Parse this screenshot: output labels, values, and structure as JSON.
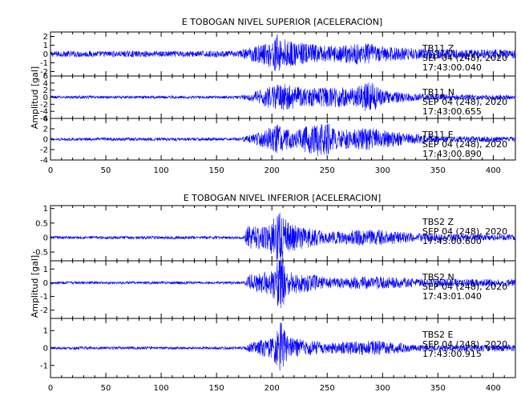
{
  "chart_data": [
    {
      "type": "line",
      "title": "E TOBOGAN NIVEL SUPERIOR [ACELERACION]",
      "ylabel": "Amplitud [gal]",
      "xlim": [
        0,
        420
      ],
      "xticks": [
        0,
        50,
        100,
        150,
        200,
        250,
        300,
        350,
        400
      ],
      "line_color": "#0000ff",
      "grid": false,
      "channels": [
        {
          "station": "TB11",
          "component": "Z",
          "date": "SEP 04 (248), 2020",
          "time": "17:43:00.040",
          "ylim": [
            -2.5,
            2.5
          ],
          "yticks": [
            -2,
            -1,
            0,
            1,
            2
          ],
          "noise_amplitude": 0.35,
          "envelope": [
            [
              0,
              0.35
            ],
            [
              170,
              0.35
            ],
            [
              180,
              0.8
            ],
            [
              195,
              1.3
            ],
            [
              205,
              2.3
            ],
            [
              215,
              1.5
            ],
            [
              250,
              0.9
            ],
            [
              285,
              1.3
            ],
            [
              300,
              0.9
            ],
            [
              340,
              0.6
            ],
            [
              420,
              0.5
            ]
          ]
        },
        {
          "station": "TB11",
          "component": "N",
          "date": "SEP 04 (248), 2020",
          "time": "17:43:00.655",
          "ylim": [
            -6,
            6
          ],
          "yticks": [
            -6,
            -4,
            -2,
            0,
            2,
            4,
            6
          ],
          "noise_amplitude": 0.4,
          "envelope": [
            [
              0,
              0.4
            ],
            [
              170,
              0.4
            ],
            [
              180,
              1.0
            ],
            [
              200,
              3.5
            ],
            [
              215,
              3.8
            ],
            [
              230,
              2.5
            ],
            [
              260,
              3.0
            ],
            [
              270,
              2.6
            ],
            [
              290,
              4.5
            ],
            [
              300,
              2.0
            ],
            [
              330,
              1.0
            ],
            [
              420,
              0.6
            ]
          ]
        },
        {
          "station": "TB11",
          "component": "E",
          "date": "SEP 04 (248), 2020",
          "time": "17:43:00.890",
          "ylim": [
            -4,
            4
          ],
          "yticks": [
            -4,
            -2,
            0,
            2,
            4
          ],
          "noise_amplitude": 0.3,
          "envelope": [
            [
              0,
              0.3
            ],
            [
              170,
              0.3
            ],
            [
              185,
              1.0
            ],
            [
              205,
              2.8
            ],
            [
              220,
              1.6
            ],
            [
              245,
              3.8
            ],
            [
              260,
              1.8
            ],
            [
              290,
              2.2
            ],
            [
              320,
              1.2
            ],
            [
              350,
              0.6
            ],
            [
              420,
              0.5
            ]
          ]
        }
      ]
    },
    {
      "type": "line",
      "title": "E TOBOGAN NIVEL INFERIOR [ACELERACION]",
      "ylabel": "Amplitud [gal]",
      "xlim": [
        0,
        420
      ],
      "xticks": [
        0,
        50,
        100,
        150,
        200,
        250,
        300,
        350,
        400
      ],
      "line_color": "#0000ff",
      "grid": false,
      "channels": [
        {
          "station": "TBS2",
          "component": "Z",
          "date": "SEP 04 (248), 2020",
          "time": "17:43:00.600",
          "ylim": [
            -0.8,
            1.1
          ],
          "yticks": [
            -0.5,
            0.0,
            0.5,
            1.0
          ],
          "noise_amplitude": 0.05,
          "envelope": [
            [
              0,
              0.05
            ],
            [
              175,
              0.05
            ],
            [
              178,
              0.4
            ],
            [
              195,
              0.4
            ],
            [
              208,
              1.0
            ],
            [
              215,
              0.5
            ],
            [
              250,
              0.2
            ],
            [
              290,
              0.3
            ],
            [
              330,
              0.15
            ],
            [
              420,
              0.1
            ]
          ]
        },
        {
          "station": "TBS2",
          "component": "N",
          "date": "SEP 04 (248), 2020",
          "time": "17:43:01.040",
          "ylim": [
            -2.6,
            1.6
          ],
          "yticks": [
            -2,
            -1,
            0,
            1
          ],
          "noise_amplitude": 0.1,
          "envelope": [
            [
              0,
              0.1
            ],
            [
              175,
              0.1
            ],
            [
              180,
              0.6
            ],
            [
              200,
              0.9
            ],
            [
              208,
              2.3
            ],
            [
              215,
              0.9
            ],
            [
              250,
              0.4
            ],
            [
              290,
              0.5
            ],
            [
              330,
              0.3
            ],
            [
              420,
              0.25
            ]
          ]
        },
        {
          "station": "TBS2",
          "component": "E",
          "date": "SEP 04 (248), 2020",
          "time": "17:43:00.915",
          "ylim": [
            -1.7,
            1.7
          ],
          "yticks": [
            -1,
            0,
            1
          ],
          "noise_amplitude": 0.08,
          "envelope": [
            [
              0,
              0.08
            ],
            [
              175,
              0.08
            ],
            [
              182,
              0.35
            ],
            [
              200,
              0.6
            ],
            [
              208,
              1.5
            ],
            [
              215,
              0.6
            ],
            [
              250,
              0.3
            ],
            [
              290,
              0.45
            ],
            [
              330,
              0.2
            ],
            [
              420,
              0.2
            ]
          ]
        }
      ]
    }
  ]
}
